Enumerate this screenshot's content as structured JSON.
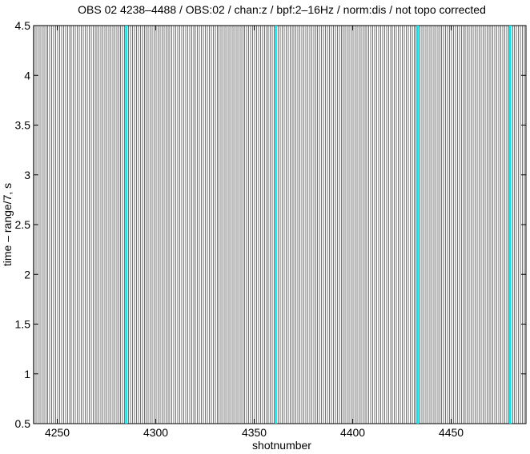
{
  "chart_data": {
    "type": "seismic",
    "title": "OBS 02 4238–4488 / OBS:02 / chan:z / bpf:2–16Hz / norm:dis / not topo corrected",
    "x_label": "shotnumber",
    "y_label": "time – range/7, s",
    "xlim": [
      4238,
      4488
    ],
    "xticks": [
      4250,
      4300,
      4350,
      4400,
      4450
    ],
    "ylim": [
      0.5,
      4.5
    ],
    "yticks": [
      0.5,
      1,
      1.5,
      2,
      2.5,
      3,
      3.5,
      4,
      4.5
    ],
    "markers": {
      "color": "#00e5ee",
      "x": [
        4285,
        4361,
        4433,
        4480
      ]
    }
  }
}
